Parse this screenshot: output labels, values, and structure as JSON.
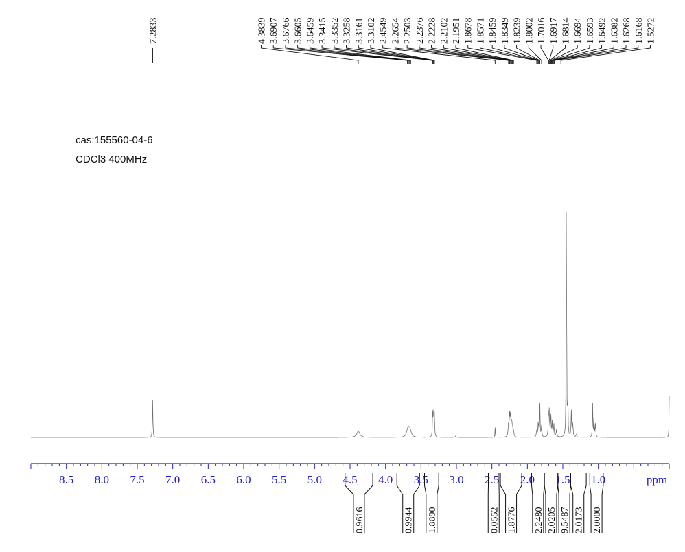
{
  "sample": {
    "cas_label": "cas:155560-04-6",
    "solvent_label": "CDCl3 400MHz"
  },
  "chart_data": {
    "type": "line",
    "title": "",
    "xlabel": "ppm",
    "ylabel": "",
    "x_reversed": true,
    "xlim": [
      9.0,
      0.0
    ],
    "x_ticks": [
      "8.5",
      "8.0",
      "7.5",
      "7.0",
      "6.5",
      "6.0",
      "5.5",
      "5.0",
      "4.5",
      "4.0",
      "3.5",
      "3.0",
      "2.5",
      "2.0",
      "1.5",
      "1.0"
    ],
    "grid": false,
    "peak_labels_left": [
      "7.2833"
    ],
    "peak_labels_group": [
      "4.3839",
      "3.6907",
      "3.6766",
      "3.6605",
      "3.6459",
      "3.3415",
      "3.3352",
      "3.3258",
      "3.3161",
      "3.3102",
      "2.4549",
      "2.2654",
      "2.2503",
      "2.2376",
      "2.2228",
      "2.2102",
      "2.1951",
      "1.8678",
      "1.8571",
      "1.8459",
      "1.8349",
      "1.8239",
      "1.8002",
      "1.7016",
      "1.6917",
      "1.6814",
      "1.6694",
      "1.6593",
      "1.6492",
      "1.6382",
      "1.6268",
      "1.6168",
      "1.5272"
    ],
    "integrals": [
      {
        "value": "0.9616",
        "from": 4.57,
        "to": 4.18
      },
      {
        "value": "0.9944",
        "from": 3.84,
        "to": 3.52
      },
      {
        "value": "1.8890",
        "from": 3.45,
        "to": 3.25
      },
      {
        "value": "0.0552",
        "from": 2.55,
        "to": 2.4
      },
      {
        "value": "1.8776",
        "from": 2.38,
        "to": 2.08
      },
      {
        "value": "2.2480",
        "from": 1.94,
        "to": 1.76
      },
      {
        "value": "2.0205",
        "from": 1.76,
        "to": 1.57
      },
      {
        "value": "9.5487",
        "from": 1.57,
        "to": 1.39
      },
      {
        "value": "2.0173",
        "from": 1.39,
        "to": 1.17
      },
      {
        "value": "2.0000",
        "from": 1.12,
        "to": 0.93
      }
    ],
    "peaks": [
      {
        "ppm": 7.2833,
        "height": 0.105,
        "width": 0.004
      },
      {
        "ppm": 4.3839,
        "height": 0.017,
        "width": 0.025
      },
      {
        "ppm": 3.6907,
        "height": 0.012,
        "width": 0.018
      },
      {
        "ppm": 3.6766,
        "height": 0.014,
        "width": 0.018
      },
      {
        "ppm": 3.6605,
        "height": 0.012,
        "width": 0.018
      },
      {
        "ppm": 3.6459,
        "height": 0.008,
        "width": 0.018
      },
      {
        "ppm": 3.3352,
        "height": 0.066,
        "width": 0.004
      },
      {
        "ppm": 3.3258,
        "height": 0.05,
        "width": 0.004
      },
      {
        "ppm": 3.3161,
        "height": 0.066,
        "width": 0.004
      },
      {
        "ppm": 3.3102,
        "height": 0.04,
        "width": 0.004
      },
      {
        "ppm": 3.01,
        "height": 0.004,
        "width": 0.006
      },
      {
        "ppm": 2.4549,
        "height": 0.029,
        "width": 0.003
      },
      {
        "ppm": 2.2654,
        "height": 0.035,
        "width": 0.006
      },
      {
        "ppm": 2.2503,
        "height": 0.055,
        "width": 0.006
      },
      {
        "ppm": 2.2376,
        "height": 0.05,
        "width": 0.006
      },
      {
        "ppm": 2.2228,
        "height": 0.04,
        "width": 0.006
      },
      {
        "ppm": 2.2102,
        "height": 0.025,
        "width": 0.006
      },
      {
        "ppm": 2.1951,
        "height": 0.015,
        "width": 0.006
      },
      {
        "ppm": 1.8678,
        "height": 0.02,
        "width": 0.006
      },
      {
        "ppm": 1.8459,
        "height": 0.045,
        "width": 0.005
      },
      {
        "ppm": 1.8239,
        "height": 0.09,
        "width": 0.004
      },
      {
        "ppm": 1.8002,
        "height": 0.03,
        "width": 0.005
      },
      {
        "ppm": 1.7016,
        "height": 0.055,
        "width": 0.005
      },
      {
        "ppm": 1.6917,
        "height": 0.065,
        "width": 0.005
      },
      {
        "ppm": 1.6694,
        "height": 0.06,
        "width": 0.005
      },
      {
        "ppm": 1.6492,
        "height": 0.04,
        "width": 0.005
      },
      {
        "ppm": 1.6268,
        "height": 0.035,
        "width": 0.005
      },
      {
        "ppm": 1.59,
        "height": 0.02,
        "width": 0.006
      },
      {
        "ppm": 1.45,
        "height": 0.875,
        "width": 0.003
      },
      {
        "ppm": 1.43,
        "height": 0.11,
        "width": 0.004
      },
      {
        "ppm": 1.38,
        "height": 0.07,
        "width": 0.005
      },
      {
        "ppm": 1.36,
        "height": 0.04,
        "width": 0.005
      },
      {
        "ppm": 1.31,
        "height": 0.008,
        "width": 0.006
      },
      {
        "ppm": 1.08,
        "height": 0.09,
        "width": 0.004
      },
      {
        "ppm": 1.06,
        "height": 0.06,
        "width": 0.004
      },
      {
        "ppm": 1.04,
        "height": 0.045,
        "width": 0.004
      },
      {
        "ppm": 0.0,
        "height": 0.112,
        "width": 0.003
      }
    ]
  }
}
